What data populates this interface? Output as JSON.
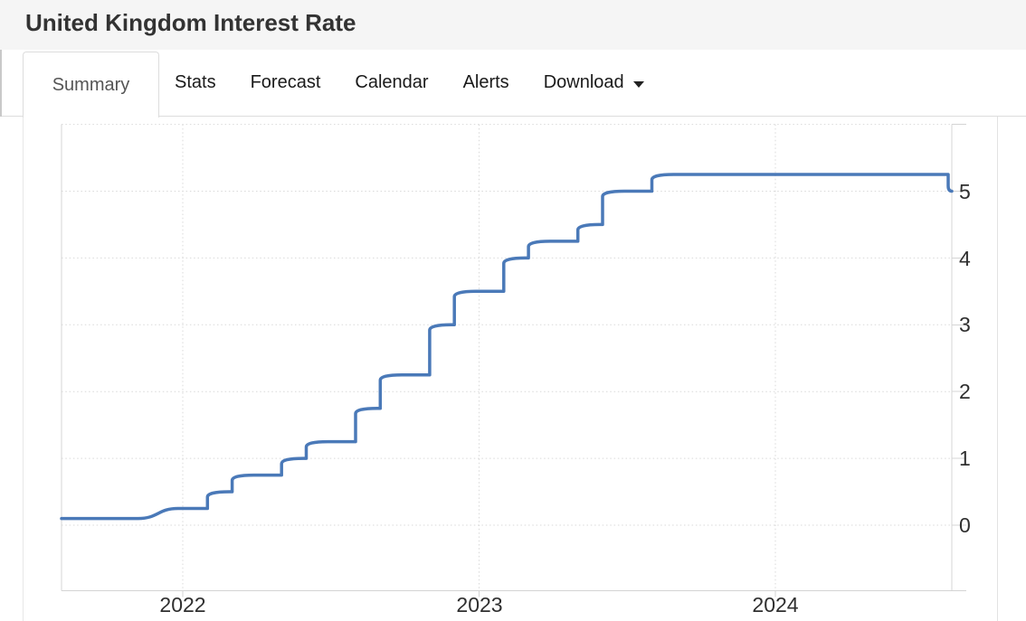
{
  "header": {
    "title": "United Kingdom Interest Rate"
  },
  "tabs": {
    "items": [
      {
        "label": "Summary",
        "active": true
      },
      {
        "label": "Stats",
        "active": false
      },
      {
        "label": "Forecast",
        "active": false
      },
      {
        "label": "Calendar",
        "active": false
      },
      {
        "label": "Alerts",
        "active": false
      },
      {
        "label": "Download",
        "active": false,
        "has_caret": true
      }
    ]
  },
  "chart_data": {
    "type": "line",
    "title": "United Kingdom Interest Rate",
    "ylabel": "",
    "xlabel": "",
    "unit": "percent",
    "grid": "dotted",
    "legend": "none",
    "line_color": "#4a79b8",
    "x_tick_labels": [
      "2022",
      "2023",
      "2024"
    ],
    "y_tick_labels": [
      "0",
      "1",
      "2",
      "3",
      "4",
      "5"
    ],
    "y_grid_values": [
      0,
      1,
      2,
      3,
      4,
      5,
      6
    ],
    "x_grid_years": [
      2022,
      2023,
      2024
    ],
    "x_range": [
      "2021-08",
      "2024-08"
    ],
    "y_axis_range": [
      -1,
      6
    ],
    "series": [
      {
        "name": "United Kingdom Interest Rate",
        "points": [
          [
            "2021-08",
            0.1
          ],
          [
            "2021-12",
            0.25
          ],
          [
            "2022-02",
            0.5
          ],
          [
            "2022-03",
            0.75
          ],
          [
            "2022-05",
            1.0
          ],
          [
            "2022-06",
            1.25
          ],
          [
            "2022-08",
            1.75
          ],
          [
            "2022-09",
            2.25
          ],
          [
            "2022-11",
            3.0
          ],
          [
            "2022-12",
            3.5
          ],
          [
            "2023-02",
            4.0
          ],
          [
            "2023-03",
            4.25
          ],
          [
            "2023-05",
            4.5
          ],
          [
            "2023-06",
            5.0
          ],
          [
            "2023-08",
            5.25
          ],
          [
            "2024-08",
            5.0
          ]
        ]
      }
    ]
  }
}
